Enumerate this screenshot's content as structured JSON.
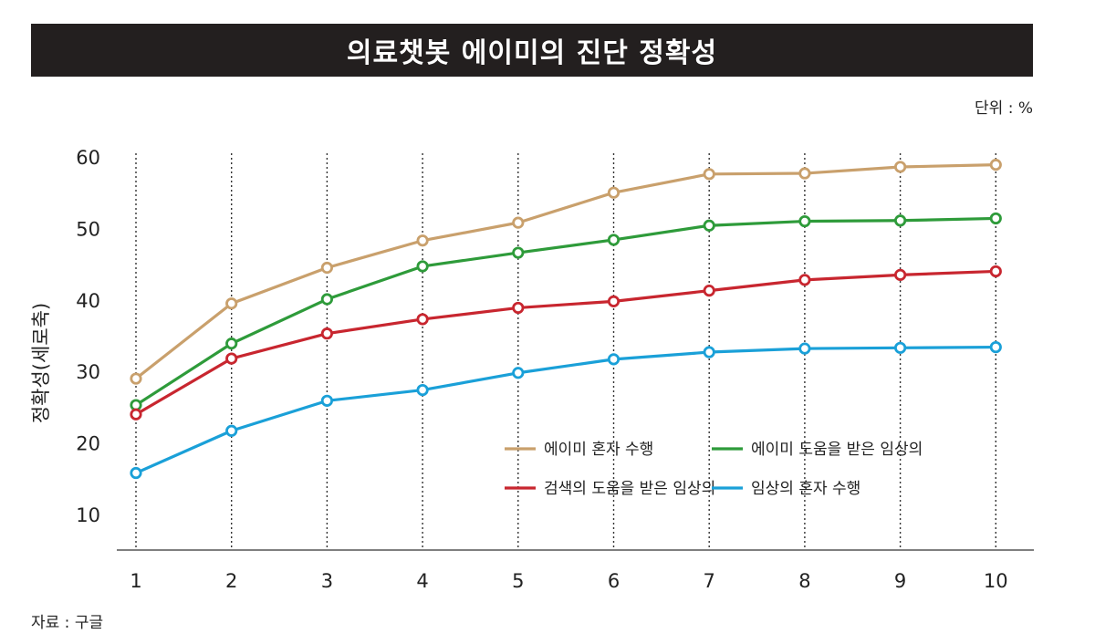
{
  "header": {
    "title": "의료챗봇 에이미의 진단 정확성"
  },
  "unit_label": "단위 : %",
  "source_label": "자료 : 구글",
  "chart_data": {
    "type": "line",
    "title": "의료챗봇 에이미의 진단 정확성",
    "ylabel": "정확성(세로축)",
    "xlabel": "",
    "x": [
      1,
      2,
      3,
      4,
      5,
      6,
      7,
      8,
      9,
      10
    ],
    "yticks": [
      10,
      20,
      30,
      40,
      50,
      60
    ],
    "ylim": [
      5,
      60
    ],
    "grid": "vertical dotted",
    "legend_position": "lower-right",
    "series": [
      {
        "name": "에이미 혼자 수행",
        "color": "#c9a06c",
        "values": [
          29,
          39.5,
          44.5,
          48.3,
          50.8,
          55,
          57.6,
          57.7,
          58.6,
          58.9
        ]
      },
      {
        "name": "에이미 도움을 받은 임상의",
        "color": "#2e9b3a",
        "values": [
          25.3,
          33.9,
          40.1,
          44.7,
          46.6,
          48.4,
          50.4,
          51,
          51.1,
          51.4
        ]
      },
      {
        "name": "검색의 도움을 받은 임상의",
        "color": "#c8262f",
        "values": [
          24,
          31.8,
          35.3,
          37.3,
          38.9,
          39.8,
          41.3,
          42.8,
          43.5,
          44
        ]
      },
      {
        "name": "임상의 혼자 수행",
        "color": "#1aa0d8",
        "values": [
          15.8,
          21.7,
          25.9,
          27.4,
          29.8,
          31.7,
          32.7,
          33.2,
          33.3,
          33.4
        ]
      }
    ]
  }
}
